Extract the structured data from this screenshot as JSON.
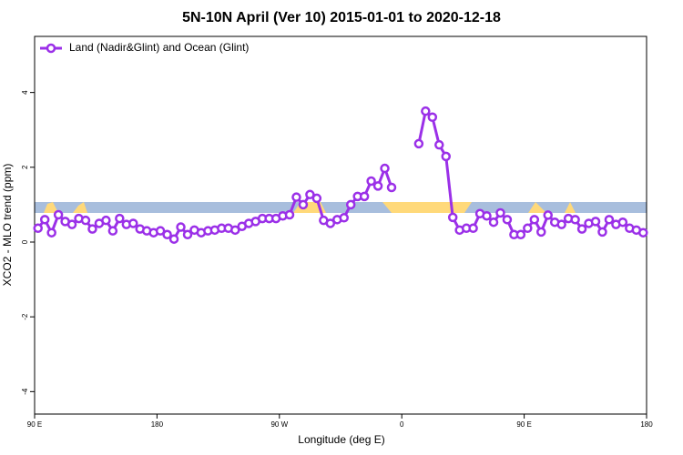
{
  "chart_data": {
    "type": "line",
    "title": "5N-10N April (Ver 10)   2015-01-01 to 2020-12-18",
    "x_label": "Longitude (deg E)",
    "y_label": "XCO2 - MLO trend (ppm)",
    "x": [
      92.5,
      97.5,
      102.5,
      107.5,
      112.5,
      117.5,
      122.5,
      127.5,
      132.5,
      137.5,
      142.5,
      147.5,
      152.5,
      157.5,
      162.5,
      167.5,
      172.5,
      177.5,
      182.5,
      187.5,
      192.5,
      197.5,
      202.5,
      207.5,
      212.5,
      217.5,
      222.5,
      227.5,
      232.5,
      237.5,
      242.5,
      247.5,
      252.5,
      257.5,
      262.5,
      267.5,
      272.5,
      277.5,
      282.5,
      287.5,
      292.5,
      297.5,
      302.5,
      307.5,
      312.5,
      317.5,
      322.5,
      327.5,
      332.5,
      337.5,
      342.5,
      347.5,
      352.5,
      357.5,
      362.5,
      367.5,
      372.5,
      377.5,
      382.5,
      387.5,
      392.5,
      397.5,
      402.5,
      407.5,
      412.5,
      417.5,
      422.5,
      427.5,
      432.5,
      437.5,
      442.5,
      447.5,
      452.5,
      457.5,
      462.5,
      467.5,
      472.5,
      477.5,
      482.5,
      487.5,
      492.5,
      497.5,
      502.5,
      507.5,
      512.5,
      517.5,
      522.5,
      527.5,
      532.5,
      537.5
    ],
    "series": [
      {
        "name": "Land (Nadir&Glint) and Ocean (Glint)",
        "color": "#9b30e8",
        "values": [
          0.37,
          0.6,
          0.25,
          0.73,
          0.55,
          0.47,
          0.63,
          0.58,
          0.35,
          0.5,
          0.58,
          0.3,
          0.63,
          0.47,
          0.5,
          0.35,
          0.3,
          0.25,
          0.3,
          0.2,
          0.08,
          0.4,
          0.2,
          0.32,
          0.25,
          0.3,
          0.32,
          0.37,
          0.37,
          0.32,
          0.42,
          0.5,
          0.55,
          0.63,
          0.63,
          0.63,
          0.7,
          0.73,
          1.2,
          1.0,
          1.27,
          1.17,
          0.58,
          0.5,
          0.6,
          0.65,
          1.0,
          1.22,
          1.22,
          1.63,
          1.5,
          1.97,
          1.46,
          null,
          null,
          null,
          2.63,
          3.5,
          3.34,
          2.6,
          2.29,
          0.66,
          0.32,
          0.37,
          0.37,
          0.76,
          0.7,
          0.53,
          0.78,
          0.6,
          0.2,
          0.2,
          0.37,
          0.6,
          0.27,
          0.72,
          0.53,
          0.47,
          0.63,
          0.6,
          0.35,
          0.5,
          0.55,
          0.27,
          0.6,
          0.47,
          0.53,
          0.37,
          0.32,
          0.25
        ]
      }
    ],
    "xlim": [
      90,
      540
    ],
    "xticks": [
      {
        "value": 90,
        "label": "90 E"
      },
      180,
      {
        "value": 270,
        "label": "90 W"
      },
      {
        "value": 360,
        "label": "0"
      },
      {
        "value": 450,
        "label": "90 E"
      },
      {
        "value": 540,
        "label": "180"
      }
    ],
    "ylim": [
      -4.6,
      5.5
    ],
    "yticks": [
      -4,
      -2,
      0,
      2,
      4
    ],
    "legend": "top-left"
  }
}
